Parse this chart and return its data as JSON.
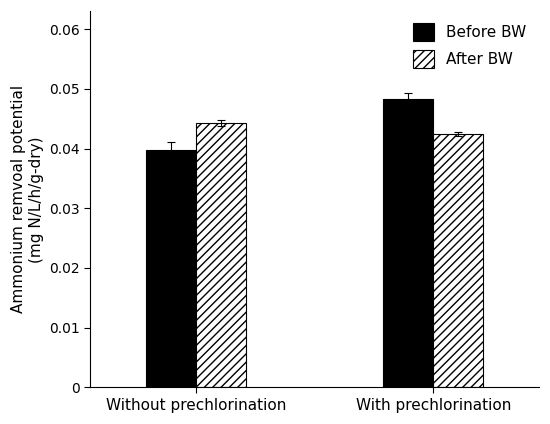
{
  "categories": [
    "Without prechlorination",
    "With prechlorination"
  ],
  "before_bw": [
    0.0398,
    0.0483
  ],
  "after_bw": [
    0.0443,
    0.0424
  ],
  "before_bw_err": [
    0.0013,
    0.001
  ],
  "after_bw_err": [
    0.0005,
    0.0003
  ],
  "ylabel": "Ammonium remvoal potential\n(mg N/L/h/g-dry)",
  "ylim": [
    0,
    0.063
  ],
  "yticks": [
    0,
    0.01,
    0.02,
    0.03,
    0.04,
    0.05,
    0.06
  ],
  "bar_width": 0.38,
  "group_centers": [
    1.0,
    2.8
  ],
  "before_color": "#000000",
  "after_color": "#ffffff",
  "legend_labels": [
    "Before BW",
    "After BW"
  ],
  "background_color": "#ffffff",
  "font_size": 11,
  "tick_font_size": 10,
  "legend_font_size": 11
}
